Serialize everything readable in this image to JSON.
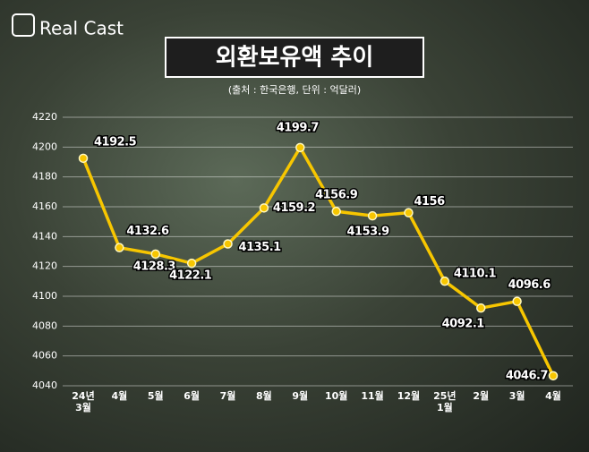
{
  "brand": "Real Cast",
  "chart_data": {
    "type": "line",
    "title": "외환보유액 추이",
    "subtitle": "(출처 : 한국은행, 단위 : 억달러)",
    "categories": [
      "24년\n3월",
      "4월",
      "5월",
      "6월",
      "7월",
      "8월",
      "9월",
      "10월",
      "11월",
      "12월",
      "25년\n1월",
      "2월",
      "3월",
      "4월"
    ],
    "series": [
      {
        "name": "외환보유액",
        "color": "#f7c600",
        "values": [
          4192.5,
          4132.6,
          4128.3,
          4122.1,
          4135.1,
          4159.2,
          4199.7,
          4156.9,
          4153.9,
          4156,
          4110.1,
          4092.1,
          4096.6,
          4046.7
        ]
      }
    ],
    "ylim": [
      4040,
      4220
    ],
    "yticks": [
      4040,
      4060,
      4080,
      4100,
      4120,
      4140,
      4160,
      4180,
      4200,
      4220
    ],
    "grid": true
  }
}
